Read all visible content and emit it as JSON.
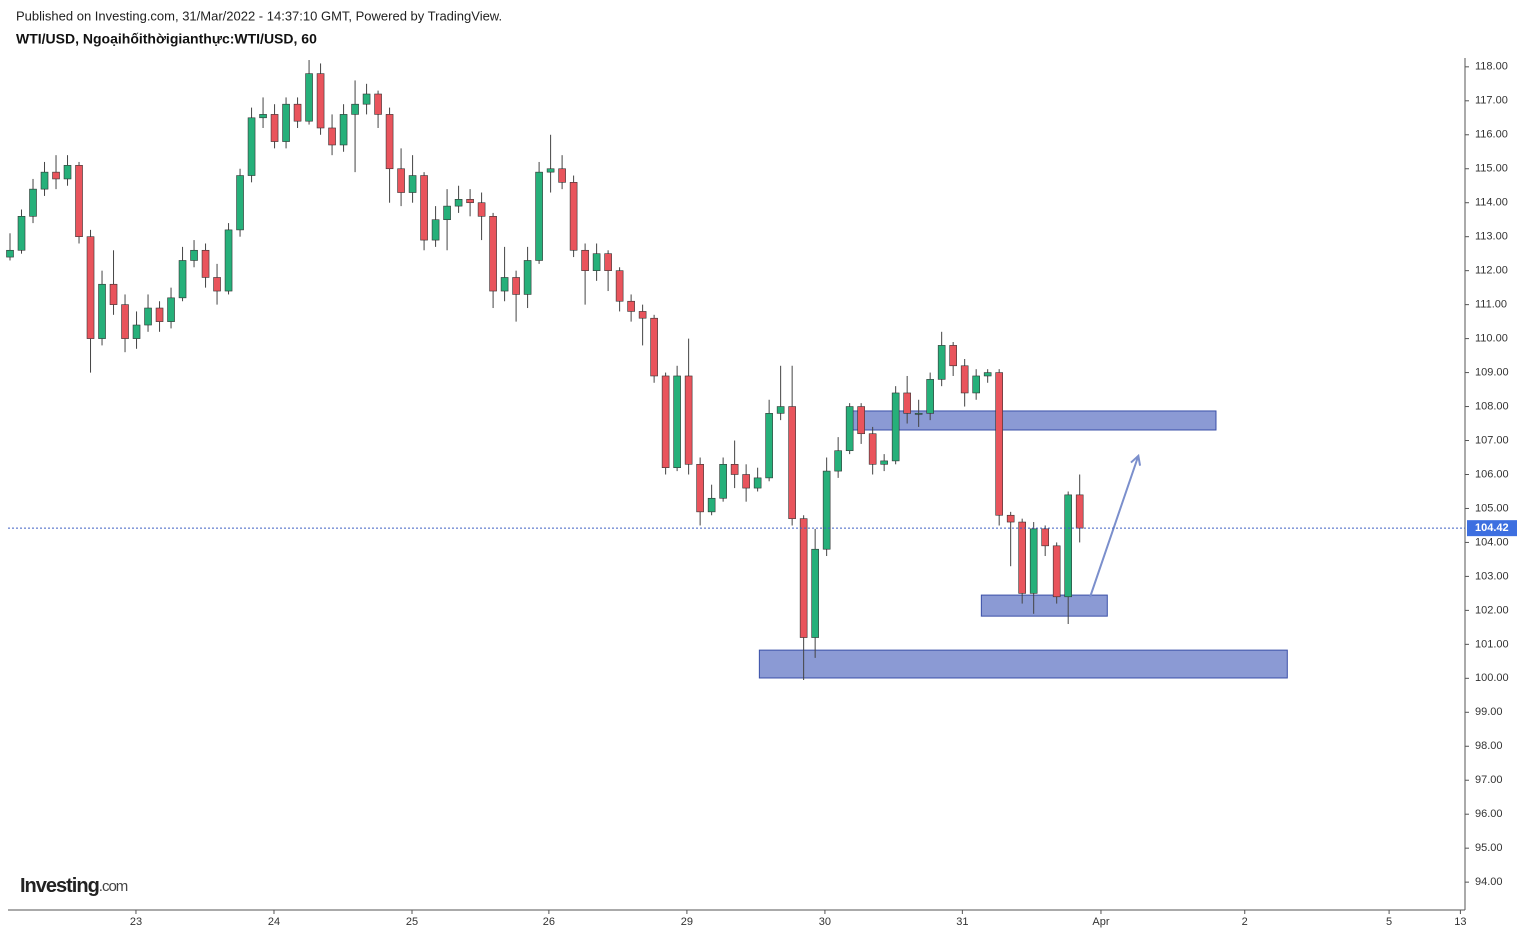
{
  "chart_data": {
    "type": "candlestick",
    "published": "Published on Investing.com, 31/Mar/2022 - 14:37:10 GMT, Powered by TradingView.",
    "title": "WTI/USD, Ngoạihốithờigianthực:WTI/USD, 60",
    "logo": "Investing",
    "logo_suffix": ".com",
    "up_color": "#26b07a",
    "down_color": "#e9545c",
    "x": [
      0,
      2,
      4,
      6,
      8,
      10,
      12,
      14,
      16,
      18,
      20,
      22,
      24,
      26,
      28,
      30,
      32,
      34,
      36,
      38,
      40,
      42,
      44,
      46,
      48,
      50,
      52,
      54,
      56,
      58,
      60,
      62,
      64,
      66,
      68,
      70,
      72,
      74,
      76,
      78,
      80,
      82,
      84,
      86,
      88,
      90,
      92,
      94,
      96,
      98,
      100,
      102,
      104,
      106,
      108,
      110,
      112,
      114,
      116,
      118,
      120,
      122,
      124,
      126,
      128,
      130,
      132,
      134,
      136,
      138,
      140,
      142,
      144,
      146,
      148,
      150,
      152,
      154,
      156,
      158,
      160,
      162,
      164,
      166,
      168,
      170,
      172,
      174,
      176,
      178,
      180,
      182,
      184,
      186
    ],
    "open": [
      112.4,
      112.6,
      113.6,
      114.4,
      114.9,
      114.7,
      115.1,
      113.0,
      110.0,
      111.6,
      111.0,
      110.0,
      110.4,
      110.9,
      110.5,
      111.2,
      112.3,
      112.6,
      111.8,
      111.4,
      113.2,
      114.8,
      116.5,
      116.6,
      115.8,
      116.9,
      116.4,
      117.8,
      116.2,
      115.7,
      116.6,
      116.9,
      117.2,
      116.6,
      115.0,
      114.3,
      114.8,
      112.9,
      113.5,
      113.9,
      114.1,
      114.0,
      113.6,
      111.4,
      111.8,
      111.3,
      112.3,
      114.9,
      115.0,
      114.6,
      112.6,
      112.0,
      112.5,
      112.0,
      111.1,
      110.8,
      110.6,
      108.9,
      106.2,
      108.9,
      106.3,
      104.9,
      105.3,
      106.3,
      106.0,
      105.6,
      105.9,
      107.8,
      108.0,
      104.7,
      101.2,
      103.8,
      106.1,
      106.7,
      108.0,
      107.2,
      106.3,
      106.4,
      108.4,
      107.8,
      107.8,
      108.8,
      109.8,
      109.2,
      108.4,
      108.9,
      109.0,
      104.8,
      104.6,
      102.5,
      104.4,
      103.9,
      102.4,
      105.4
    ],
    "high": [
      113.1,
      113.8,
      114.7,
      115.2,
      115.4,
      115.4,
      115.2,
      113.2,
      112.0,
      112.6,
      111.3,
      110.8,
      111.3,
      111.1,
      111.5,
      112.7,
      112.9,
      112.8,
      112.2,
      113.4,
      115.0,
      116.8,
      117.1,
      116.9,
      117.1,
      117.1,
      118.2,
      118.1,
      116.6,
      116.9,
      117.6,
      117.5,
      117.3,
      116.8,
      115.6,
      115.4,
      114.9,
      113.9,
      114.4,
      114.5,
      114.4,
      114.3,
      113.7,
      112.7,
      112.0,
      112.7,
      115.2,
      116.0,
      115.4,
      114.8,
      112.8,
      112.8,
      112.6,
      112.1,
      111.3,
      111.0,
      110.7,
      109.0,
      109.2,
      110.0,
      106.5,
      105.7,
      106.5,
      107.0,
      106.3,
      106.2,
      108.2,
      109.2,
      109.2,
      104.8,
      104.4,
      106.5,
      107.1,
      108.1,
      108.1,
      107.4,
      106.6,
      108.6,
      108.9,
      108.2,
      109.0,
      110.2,
      109.9,
      109.4,
      109.1,
      109.1,
      109.1,
      104.9,
      104.7,
      104.6,
      104.5,
      104.0,
      105.5,
      106.0
    ],
    "low": [
      112.3,
      112.5,
      113.4,
      114.2,
      114.4,
      114.5,
      112.8,
      109.0,
      109.8,
      110.7,
      109.6,
      109.7,
      110.2,
      110.2,
      110.3,
      111.1,
      112.1,
      111.5,
      111.0,
      111.3,
      113.0,
      114.6,
      116.2,
      115.6,
      115.6,
      116.2,
      116.3,
      116.0,
      115.4,
      115.5,
      114.9,
      116.6,
      116.2,
      114.0,
      113.9,
      114.0,
      112.6,
      112.7,
      112.6,
      113.7,
      113.6,
      112.9,
      110.9,
      111.1,
      110.5,
      110.9,
      112.2,
      114.3,
      114.4,
      112.4,
      111.0,
      111.7,
      111.4,
      110.8,
      110.5,
      109.8,
      108.7,
      106.0,
      106.1,
      106.0,
      104.5,
      104.8,
      105.2,
      105.6,
      105.2,
      105.5,
      105.8,
      107.6,
      104.5,
      99.95,
      100.6,
      103.6,
      105.9,
      106.6,
      106.9,
      106.0,
      106.1,
      106.3,
      107.5,
      107.4,
      107.6,
      108.6,
      108.9,
      108.0,
      108.2,
      108.7,
      104.5,
      103.3,
      102.2,
      101.9,
      103.6,
      102.2,
      101.6,
      104.0
    ],
    "close": [
      112.6,
      113.6,
      114.4,
      114.9,
      114.7,
      115.1,
      113.0,
      110.0,
      111.6,
      111.0,
      110.0,
      110.4,
      110.9,
      110.5,
      111.2,
      112.3,
      112.6,
      111.8,
      111.4,
      113.2,
      114.8,
      116.5,
      116.6,
      115.8,
      116.9,
      116.4,
      117.8,
      116.2,
      115.7,
      116.6,
      116.9,
      117.2,
      116.6,
      115.0,
      114.3,
      114.8,
      112.9,
      113.5,
      113.9,
      114.1,
      114.0,
      113.6,
      111.4,
      111.8,
      111.3,
      112.3,
      114.9,
      115.0,
      114.6,
      112.6,
      112.0,
      112.5,
      112.0,
      111.1,
      110.8,
      110.6,
      108.9,
      106.2,
      108.9,
      106.3,
      104.9,
      105.3,
      106.3,
      106.0,
      105.6,
      105.9,
      107.8,
      108.0,
      104.7,
      101.2,
      103.8,
      106.1,
      106.7,
      108.0,
      107.2,
      106.3,
      106.4,
      108.4,
      107.8,
      107.8,
      108.8,
      109.8,
      109.2,
      108.4,
      108.9,
      109.0,
      104.8,
      104.6,
      102.5,
      104.4,
      103.9,
      102.4,
      105.4,
      104.42
    ],
    "xlim": [
      -0.35,
      253
    ],
    "xticks": [
      {
        "value": 21.9,
        "label": "23"
      },
      {
        "value": 45.9,
        "label": "24"
      },
      {
        "value": 69.9,
        "label": "25"
      },
      {
        "value": 93.7,
        "label": "26"
      },
      {
        "value": 117.7,
        "label": "29"
      },
      {
        "value": 141.7,
        "label": "30"
      },
      {
        "value": 165.6,
        "label": "31"
      },
      {
        "value": 189.7,
        "label": "Apr"
      },
      {
        "value": 214.7,
        "label": "2"
      },
      {
        "value": 239.8,
        "label": "5"
      },
      {
        "value": 252.2,
        "label": "13"
      }
    ],
    "ylim": [
      93.18,
      118.26
    ],
    "yticks": [
      {
        "value": 94,
        "label": "94.00"
      },
      {
        "value": 95,
        "label": "95.00"
      },
      {
        "value": 96,
        "label": "96.00"
      },
      {
        "value": 97,
        "label": "97.00"
      },
      {
        "value": 98,
        "label": "98.00"
      },
      {
        "value": 99,
        "label": "99.00"
      },
      {
        "value": 100,
        "label": "100.00"
      },
      {
        "value": 101,
        "label": "101.00"
      },
      {
        "value": 102,
        "label": "102.00"
      },
      {
        "value": 103,
        "label": "103.00"
      },
      {
        "value": 104,
        "label": "104.00"
      },
      {
        "value": 105,
        "label": "105.00"
      },
      {
        "value": 106,
        "label": "106.00"
      },
      {
        "value": 107,
        "label": "107.00"
      },
      {
        "value": 108,
        "label": "108.00"
      },
      {
        "value": 109,
        "label": "109.00"
      },
      {
        "value": 110,
        "label": "110.00"
      },
      {
        "value": 111,
        "label": "111.00"
      },
      {
        "value": 112,
        "label": "112.00"
      },
      {
        "value": 113,
        "label": "113.00"
      },
      {
        "value": 114,
        "label": "114.00"
      },
      {
        "value": 115,
        "label": "115.00"
      },
      {
        "value": 116,
        "label": "116.00"
      },
      {
        "value": 117,
        "label": "117.00"
      },
      {
        "value": 118,
        "label": "118.00"
      }
    ],
    "zones": [
      {
        "x": [
          145.6,
          209.7
        ],
        "y": [
          107.31,
          107.87
        ]
      },
      {
        "x": [
          168.9,
          190.8
        ],
        "y": [
          101.83,
          102.45
        ]
      },
      {
        "x": [
          130.3,
          222.1
        ],
        "y": [
          100.01,
          100.83
        ]
      }
    ],
    "arrow": {
      "x": [
        187.8,
        196.2
      ],
      "y": [
        102.39,
        106.55
      ]
    }
  }
}
